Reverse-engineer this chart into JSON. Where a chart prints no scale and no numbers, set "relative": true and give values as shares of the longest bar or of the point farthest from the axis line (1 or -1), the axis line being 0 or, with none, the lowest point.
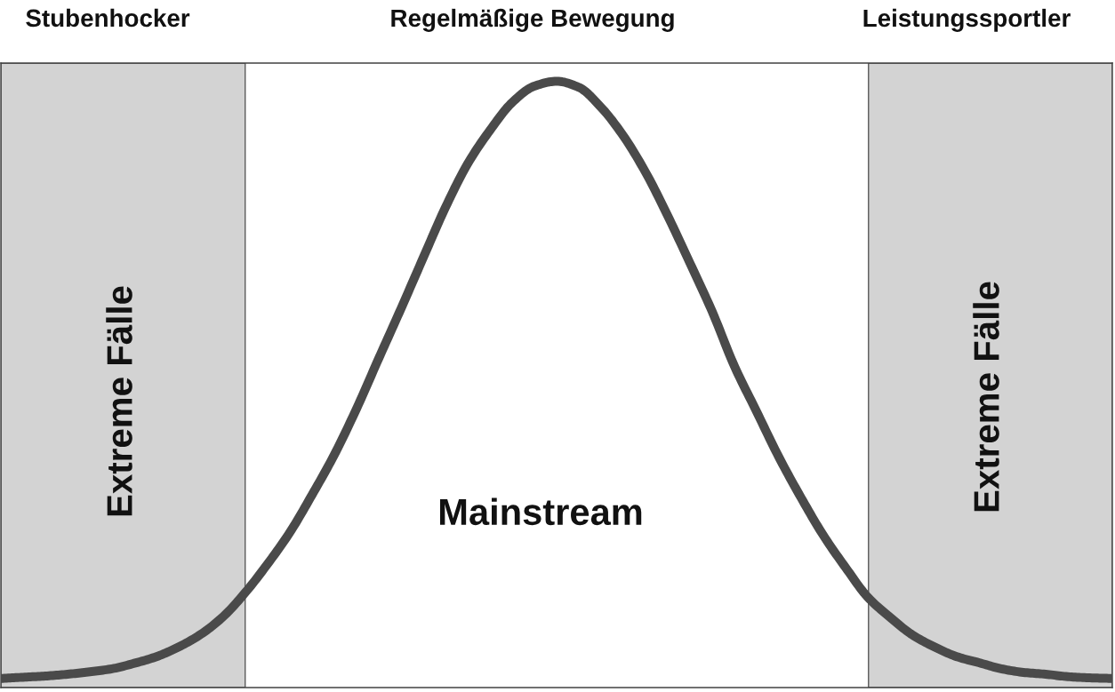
{
  "chart_data": {
    "type": "line",
    "relative": true,
    "categories": [
      null,
      null,
      null,
      null,
      null,
      null,
      null,
      null,
      null,
      null,
      null,
      null,
      null,
      null,
      null,
      null,
      null,
      null,
      null,
      null,
      null,
      null,
      null,
      null,
      null,
      null,
      null,
      null,
      null,
      null,
      null,
      null,
      null,
      null,
      null,
      null,
      null,
      null,
      null,
      null,
      null,
      null,
      null,
      null,
      null,
      null,
      null,
      null,
      null,
      null,
      null
    ],
    "series": [
      {
        "color": "#4a4a4a",
        "values": [
          0.015,
          0.017,
          0.019,
          0.022,
          0.026,
          0.031,
          0.04,
          0.051,
          0.067,
          0.088,
          0.117,
          0.157,
          0.204,
          0.256,
          0.318,
          0.384,
          0.46,
          0.543,
          0.625,
          0.709,
          0.792,
          0.864,
          0.919,
          0.965,
          0.992,
          1.0,
          0.99,
          0.957,
          0.91,
          0.85,
          0.778,
          0.7,
          0.62,
          0.53,
          0.455,
          0.38,
          0.313,
          0.251,
          0.198,
          0.149,
          0.116,
          0.087,
          0.067,
          0.051,
          0.041,
          0.031,
          0.025,
          0.022,
          0.018,
          0.016,
          0.015
        ]
      }
    ],
    "annotations": [
      "Stubenhocker",
      "Regelmäßige Bewegung",
      "Leistungssportler",
      "Extreme Fälle",
      "Extreme Fälle",
      "Mainstream"
    ]
  }
}
